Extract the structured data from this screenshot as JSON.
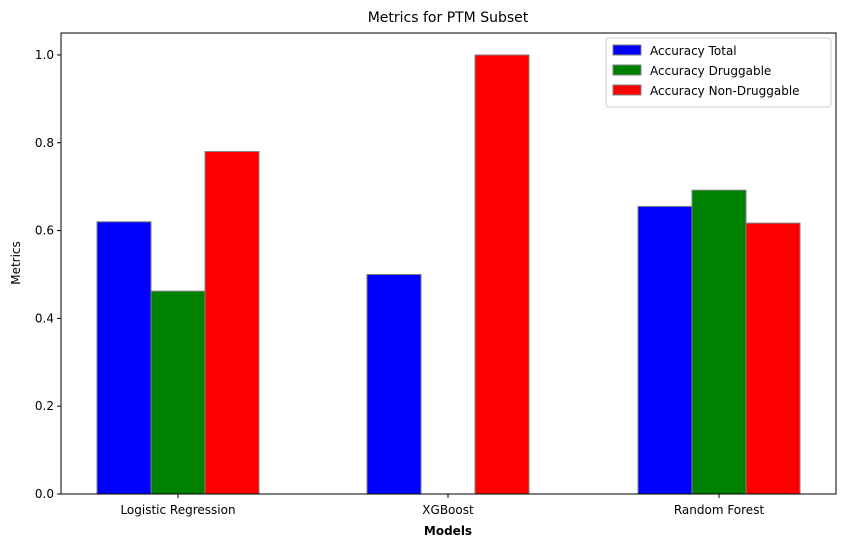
{
  "chart_data": {
    "type": "bar",
    "title": "Metrics for PTM Subset",
    "xlabel": "Models",
    "ylabel": "Metrics",
    "categories": [
      "Logistic Regression",
      "XGBoost",
      "Random Forest"
    ],
    "series": [
      {
        "name": "Accuracy Total",
        "color": "#0000ff",
        "values": [
          0.62,
          0.5,
          0.655
        ]
      },
      {
        "name": "Accuracy Druggable",
        "color": "#008000",
        "values": [
          0.462,
          0.0,
          0.692
        ]
      },
      {
        "name": "Accuracy Non-Druggable",
        "color": "#ff0000",
        "values": [
          0.78,
          1.0,
          0.617
        ]
      }
    ],
    "ylim": [
      0,
      1.05
    ],
    "yticks": [
      0.0,
      0.2,
      0.4,
      0.6,
      0.8,
      1.0
    ],
    "ytick_labels": [
      "0.0",
      "0.2",
      "0.4",
      "0.6",
      "0.8",
      "1.0"
    ],
    "grid": false,
    "legend": "top-right",
    "bar_edge_color": "#808080"
  }
}
